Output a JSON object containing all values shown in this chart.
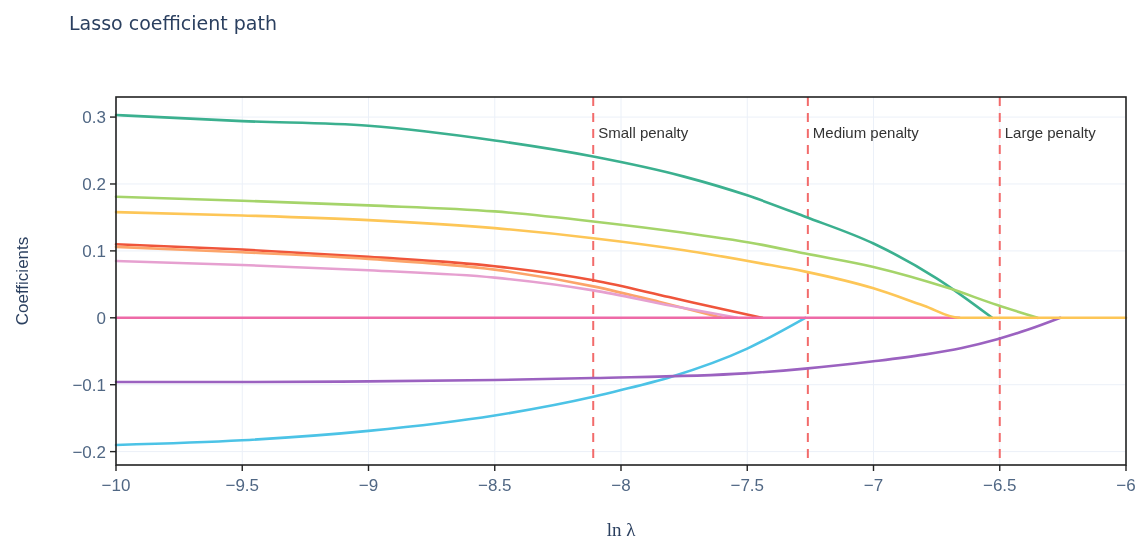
{
  "chart_data": {
    "type": "line",
    "title": "Lasso coefficient path",
    "xlabel": "ln λ",
    "ylabel": "Coefficients",
    "xlim": [
      -10,
      -6
    ],
    "xticks": [
      {
        "value": -10,
        "label": "−10"
      },
      {
        "value": -9.5,
        "label": "−9.5"
      },
      {
        "value": -9,
        "label": "−9"
      },
      {
        "value": -8.5,
        "label": "−8.5"
      },
      {
        "value": -8,
        "label": "−8"
      },
      {
        "value": -7.5,
        "label": "−7.5"
      },
      {
        "value": -7,
        "label": "−7"
      },
      {
        "value": -6.5,
        "label": "−6.5"
      },
      {
        "value": -6,
        "label": "−6"
      }
    ],
    "ylim": [
      -0.22,
      0.33
    ],
    "yticks": [
      {
        "value": -0.2,
        "label": "−0.2"
      },
      {
        "value": -0.1,
        "label": "−0.1"
      },
      0,
      0.1,
      0.2,
      0.3
    ],
    "grid": true,
    "series": [
      {
        "color": "#4cc3e6",
        "x": [
          -10,
          -9.5,
          -9,
          -8.5,
          -8.11,
          -8,
          -7.8,
          -7.5,
          -7.27
        ],
        "values": [
          -0.19,
          -0.183,
          -0.169,
          -0.146,
          -0.118,
          -0.108,
          -0.088,
          -0.046,
          0
        ]
      },
      {
        "color": "#9b62c0",
        "x": [
          -10,
          -9.5,
          -9,
          -8.5,
          -8.11,
          -7.51,
          -7.27,
          -7,
          -6.8,
          -6.65,
          -6.51,
          -6.39,
          -6.26
        ],
        "values": [
          -0.096,
          -0.096,
          -0.095,
          -0.093,
          -0.09,
          -0.083,
          -0.076,
          -0.065,
          -0.055,
          -0.045,
          -0.032,
          -0.018,
          0
        ]
      },
      {
        "color": "#ef553b",
        "x": [
          -10,
          -9.5,
          -9,
          -8.5,
          -8.11,
          -7.81,
          -7.6,
          -7.44
        ],
        "values": [
          0.11,
          0.102,
          0.091,
          0.077,
          0.056,
          0.031,
          0.013,
          0
        ]
      },
      {
        "color": "#fca46a",
        "x": [
          -10,
          -9.5,
          -9,
          -8.5,
          -8.11,
          -7.85,
          -7.6
        ],
        "values": [
          0.106,
          0.098,
          0.088,
          0.072,
          0.047,
          0.024,
          0
        ]
      },
      {
        "color": "#e6a0d0",
        "x": [
          -10,
          -9.5,
          -9,
          -8.5,
          -8.11,
          -7.8,
          -7.54
        ],
        "values": [
          0.085,
          0.079,
          0.071,
          0.06,
          0.041,
          0.018,
          0
        ]
      },
      {
        "color": "#3bb08f",
        "x": [
          -10,
          -9.5,
          -9,
          -8.5,
          -8.11,
          -7.75,
          -7.5,
          -7.27,
          -7,
          -6.75,
          -6.53
        ],
        "values": [
          0.303,
          0.294,
          0.287,
          0.265,
          0.241,
          0.211,
          0.183,
          0.151,
          0.111,
          0.059,
          0
        ]
      },
      {
        "color": "#a5d46a",
        "x": [
          -10,
          -9.5,
          -9,
          -8.5,
          -8.11,
          -7.75,
          -7.44,
          -7.27,
          -7,
          -6.7,
          -6.51,
          -6.35
        ],
        "values": [
          0.181,
          0.175,
          0.168,
          0.159,
          0.144,
          0.127,
          0.109,
          0.096,
          0.076,
          0.044,
          0.019,
          0
        ]
      },
      {
        "color": "#ee6aa7",
        "x": [
          -10,
          -6.66
        ],
        "values": [
          0,
          0
        ]
      },
      {
        "color": "#fdc657",
        "x": [
          -10,
          -9.5,
          -9,
          -8.5,
          -8.11,
          -7.75,
          -7.44,
          -7.27,
          -7,
          -6.8,
          -6.66,
          -6
        ],
        "values": [
          0.158,
          0.153,
          0.146,
          0.134,
          0.119,
          0.101,
          0.081,
          0.069,
          0.044,
          0.018,
          0,
          0
        ]
      }
    ],
    "ref_lines": [
      {
        "axis": "x",
        "value": -8.11,
        "label": "Small penalty",
        "color": "#f26b6b",
        "line_style": "dashed"
      },
      {
        "axis": "x",
        "value": -7.26,
        "label": "Medium penalty",
        "color": "#f26b6b",
        "line_style": "dashed"
      },
      {
        "axis": "x",
        "value": -6.5,
        "label": "Large penalty",
        "color": "#f26b6b",
        "line_style": "dashed"
      }
    ]
  }
}
